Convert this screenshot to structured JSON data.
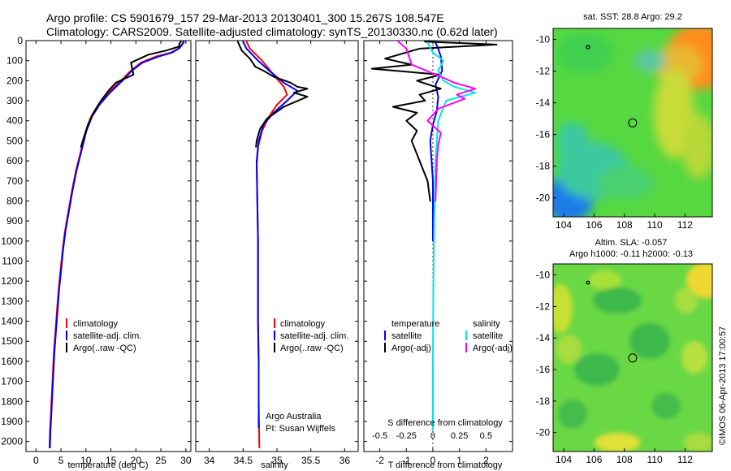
{
  "header": {
    "title_line1": "Argo profile: CS 5901679_157 29-Mar-2013 20130401_300 15.267S 108.547E",
    "title_line2": "Climatology: CARS2009. Satellite-adjusted climatology: synTS_20130330.nc (0.62d later)"
  },
  "colors": {
    "climatology": "#ff0000",
    "satellite": "#0000ff",
    "argo": "#000000",
    "salinity_sat": "#00e5ee",
    "salinity_argo": "#ff00ff"
  },
  "chart_data": [
    {
      "type": "line",
      "name": "temperature-profile",
      "xlabel": "temperature (deg C)",
      "ylabel": "pressure",
      "xlim": [
        -2,
        31
      ],
      "ylim": [
        2050,
        0
      ],
      "xticks": [
        0,
        5,
        10,
        15,
        20,
        25,
        30
      ],
      "yticks": [
        0,
        100,
        200,
        300,
        400,
        500,
        600,
        700,
        800,
        900,
        1000,
        1100,
        1200,
        1300,
        1400,
        1500,
        1600,
        1700,
        1800,
        1900,
        2000
      ],
      "legend": [
        "climatology",
        "satellite-adj. clim.",
        "Argo(..raw -QC)"
      ],
      "series": [
        {
          "name": "climatology",
          "color": "#ff0000",
          "points": [
            [
              29.5,
              5
            ],
            [
              29.2,
              20
            ],
            [
              28.5,
              40
            ],
            [
              27,
              60
            ],
            [
              24,
              80
            ],
            [
              21,
              110
            ],
            [
              19,
              150
            ],
            [
              17,
              200
            ],
            [
              14.5,
              260
            ],
            [
              12.5,
              320
            ],
            [
              11,
              380
            ],
            [
              10,
              450
            ],
            [
              9,
              550
            ],
            [
              8,
              650
            ],
            [
              7.2,
              750
            ],
            [
              6.5,
              850
            ],
            [
              5.8,
              950
            ],
            [
              5.3,
              1050
            ],
            [
              4.9,
              1150
            ],
            [
              4.5,
              1250
            ],
            [
              4.2,
              1350
            ],
            [
              3.9,
              1450
            ],
            [
              3.6,
              1550
            ],
            [
              3.4,
              1650
            ],
            [
              3.2,
              1750
            ],
            [
              3,
              1850
            ],
            [
              2.8,
              1950
            ],
            [
              2.7,
              2030
            ]
          ]
        },
        {
          "name": "satellite-adj. clim.",
          "color": "#0000ff",
          "points": [
            [
              29.6,
              5
            ],
            [
              29.3,
              20
            ],
            [
              28.6,
              40
            ],
            [
              27.2,
              60
            ],
            [
              24.5,
              80
            ],
            [
              21.3,
              110
            ],
            [
              19.2,
              150
            ],
            [
              17.3,
              200
            ],
            [
              14.8,
              260
            ],
            [
              12.7,
              320
            ],
            [
              11.2,
              380
            ],
            [
              10.1,
              450
            ],
            [
              9.1,
              550
            ],
            [
              8.1,
              650
            ],
            [
              7.3,
              750
            ],
            [
              6.6,
              850
            ],
            [
              5.9,
              950
            ],
            [
              5.4,
              1050
            ],
            [
              5,
              1150
            ],
            [
              4.6,
              1250
            ],
            [
              4.3,
              1350
            ],
            [
              4,
              1450
            ],
            [
              3.7,
              1550
            ],
            [
              3.5,
              1650
            ],
            [
              3.3,
              1750
            ],
            [
              3.1,
              1850
            ],
            [
              2.9,
              1950
            ],
            [
              2.8,
              2030
            ]
          ]
        },
        {
          "name": "Argo(..raw -QC)",
          "color": "#000000",
          "points": [
            [
              29,
              5
            ],
            [
              28.7,
              15
            ],
            [
              28.6,
              30
            ],
            [
              26,
              50
            ],
            [
              22.5,
              70
            ],
            [
              19,
              110
            ],
            [
              19.5,
              170
            ],
            [
              16,
              210
            ],
            [
              14.5,
              250
            ],
            [
              13,
              300
            ],
            [
              11.5,
              360
            ],
            [
              10.4,
              420
            ],
            [
              9.6,
              480
            ],
            [
              9,
              530
            ]
          ]
        }
      ]
    },
    {
      "type": "line",
      "name": "salinity-profile",
      "xlabel": "salinity",
      "xlim": [
        33.8,
        36.2
      ],
      "ylim": [
        2050,
        0
      ],
      "xticks": [
        34,
        34.5,
        35,
        35.5,
        36
      ],
      "xtick_labels": [
        "34",
        "34.5",
        "35",
        "35.5",
        "36"
      ],
      "legend": [
        "climatology",
        "satellite-adj. clim.",
        "Argo(..raw -QC)"
      ],
      "credit": [
        "Argo Australia",
        "PI: Susan Wijffels"
      ],
      "series": [
        {
          "name": "climatology",
          "color": "#ff0000",
          "points": [
            [
              34.55,
              5
            ],
            [
              34.6,
              40
            ],
            [
              34.78,
              100
            ],
            [
              34.95,
              170
            ],
            [
              35.1,
              230
            ],
            [
              35.15,
              270
            ],
            [
              35.0,
              320
            ],
            [
              34.88,
              380
            ],
            [
              34.78,
              450
            ],
            [
              34.72,
              530
            ],
            [
              34.7,
              620
            ],
            [
              34.71,
              800
            ],
            [
              34.72,
              1000
            ],
            [
              34.72,
              1200
            ],
            [
              34.72,
              1400
            ],
            [
              34.73,
              1600
            ],
            [
              34.73,
              1800
            ],
            [
              34.74,
              2030
            ]
          ]
        },
        {
          "name": "satellite-adj. clim.",
          "color": "#0000ff",
          "points": [
            [
              34.5,
              5
            ],
            [
              34.55,
              40
            ],
            [
              34.72,
              100
            ],
            [
              34.92,
              160
            ],
            [
              35.1,
              210
            ],
            [
              35.3,
              250
            ],
            [
              35.15,
              300
            ],
            [
              34.95,
              360
            ],
            [
              34.8,
              420
            ],
            [
              34.73,
              500
            ],
            [
              34.7,
              600
            ],
            [
              34.71,
              800
            ],
            [
              34.72,
              1000
            ],
            [
              34.72,
              1200
            ],
            [
              34.72,
              1400
            ],
            [
              34.73,
              1600
            ],
            [
              34.73,
              1800
            ],
            [
              34.73,
              1930
            ]
          ]
        },
        {
          "name": "Argo(..raw -QC)",
          "color": "#000000",
          "points": [
            [
              34.42,
              5
            ],
            [
              34.48,
              50
            ],
            [
              34.6,
              90
            ],
            [
              34.68,
              130
            ],
            [
              34.8,
              150
            ],
            [
              34.95,
              180
            ],
            [
              35.2,
              210
            ],
            [
              35.3,
              230
            ],
            [
              35.45,
              240
            ],
            [
              35.25,
              260
            ],
            [
              35.45,
              280
            ],
            [
              35.1,
              330
            ],
            [
              34.85,
              390
            ],
            [
              34.75,
              440
            ],
            [
              34.7,
              500
            ],
            [
              34.69,
              530
            ]
          ]
        }
      ]
    },
    {
      "type": "line",
      "name": "difference-profile",
      "xlabel": "T difference from climatology",
      "xlabel_top": "S difference from climatology",
      "xlim": [
        -2.6,
        3.0
      ],
      "ylim": [
        2050,
        0
      ],
      "xticks": [
        -2,
        -1,
        0,
        1,
        2
      ],
      "xtick_labels_s": [
        "-0.5",
        "-0.25",
        "0",
        "0.25",
        "0.5"
      ],
      "legend": {
        "temperature_head": "temperature",
        "salinity_head": "salinity",
        "satellite": "satellite",
        "argo": "Argo(-adj)"
      },
      "series": [
        {
          "name": "temperature satellite",
          "color": "#0000ff",
          "points": [
            [
              0.1,
              10
            ],
            [
              0.2,
              40
            ],
            [
              0.3,
              80
            ],
            [
              0.35,
              150
            ],
            [
              0.1,
              220
            ],
            [
              0.2,
              280
            ],
            [
              0.15,
              350
            ],
            [
              0,
              420
            ],
            [
              -0.1,
              500
            ],
            [
              0,
              700
            ],
            [
              0,
              1000
            ]
          ]
        },
        {
          "name": "temperature Argo(-adj)",
          "color": "#000000",
          "points": [
            [
              -0.3,
              5
            ],
            [
              2.4,
              20
            ],
            [
              -0.5,
              40
            ],
            [
              -1.8,
              90
            ],
            [
              -0.8,
              120
            ],
            [
              -2.3,
              140
            ],
            [
              0.3,
              170
            ],
            [
              -0.6,
              200
            ],
            [
              0.3,
              240
            ],
            [
              -0.5,
              270
            ],
            [
              -0.3,
              300
            ],
            [
              -1.5,
              330
            ],
            [
              -0.6,
              360
            ],
            [
              -1.0,
              400
            ],
            [
              -0.6,
              450
            ],
            [
              -0.8,
              500
            ],
            [
              -0.5,
              600
            ],
            [
              -0.2,
              700
            ],
            [
              -0.1,
              800
            ]
          ]
        },
        {
          "name": "salinity satellite",
          "color": "#00e5ee",
          "points": [
            [
              -0.2,
              10
            ],
            [
              0,
              60
            ],
            [
              0.4,
              100
            ],
            [
              0.2,
              150
            ],
            [
              0.4,
              200
            ],
            [
              0.8,
              230
            ],
            [
              1.6,
              260
            ],
            [
              0.5,
              300
            ],
            [
              0.2,
              400
            ],
            [
              0.1,
              600
            ],
            [
              0.05,
              900
            ],
            [
              0.02,
              1200
            ],
            [
              0,
              1600
            ],
            [
              0,
              1940
            ]
          ]
        },
        {
          "name": "salinity Argo(-adj)",
          "color": "#ff00ff",
          "points": [
            [
              -1.3,
              5
            ],
            [
              -1.0,
              40
            ],
            [
              -0.8,
              120
            ],
            [
              0.3,
              180
            ],
            [
              0.8,
              210
            ],
            [
              1.6,
              240
            ],
            [
              0.9,
              270
            ],
            [
              1.2,
              290
            ],
            [
              0.2,
              340
            ],
            [
              -0.2,
              400
            ],
            [
              0.3,
              460
            ],
            [
              0.2,
              520
            ],
            [
              0.15,
              600
            ],
            [
              0.1,
              800
            ]
          ]
        }
      ]
    },
    {
      "type": "heatmap",
      "name": "sst-map",
      "title": "sat. SST: 28.8 Argo: 29.2",
      "xticks": [
        104,
        106,
        108,
        110,
        112
      ],
      "yticks": [
        -10,
        -12,
        -14,
        -16,
        -18,
        -20
      ],
      "xlim": [
        103.3,
        113.8
      ],
      "ylim": [
        -21.2,
        -9.3
      ],
      "argo_position": [
        108.547,
        -15.267
      ]
    },
    {
      "type": "heatmap",
      "name": "sla-map",
      "title_line1": "Altim. SLA: -0.057",
      "title_line2": "Argo h1000: -0.11 h2000: -0.13",
      "xticks": [
        104,
        106,
        108,
        110,
        112
      ],
      "yticks": [
        -10,
        -12,
        -14,
        -16,
        -18,
        -20
      ],
      "xlim": [
        103.3,
        113.8
      ],
      "ylim": [
        -21.2,
        -9.3
      ],
      "argo_position": [
        108.547,
        -15.267
      ]
    }
  ],
  "footer": {
    "stamp": "©IMOS 06-Apr-2013 17:00:57"
  }
}
